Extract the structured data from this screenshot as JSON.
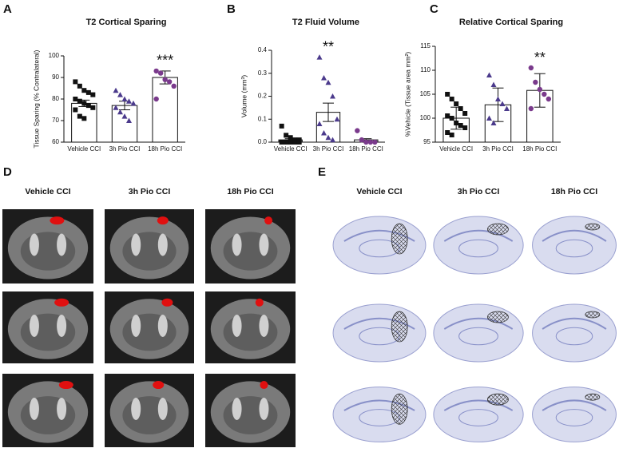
{
  "chart_data": [
    {
      "type": "bar",
      "panel": "A",
      "title": "T2 Cortical Sparing",
      "ylabel": "Tissue Sparing (% Contralateral)",
      "categories": [
        "Vehicle CCI",
        "3h Pio CCI",
        "18h Pio CCI"
      ],
      "values": [
        78,
        77,
        90
      ],
      "errors": [
        1.5,
        2,
        3
      ],
      "points": [
        [
          88,
          86,
          84,
          83,
          82,
          80,
          79,
          78,
          77,
          76,
          75,
          72,
          71
        ],
        [
          84,
          82,
          80,
          79,
          78,
          76,
          74,
          72,
          70
        ],
        [
          93,
          92,
          89,
          88,
          86,
          80
        ]
      ],
      "significance": [
        null,
        null,
        "***"
      ],
      "colors": [
        "#111111",
        "#4b3a8c",
        "#7a3a8c"
      ],
      "markers": [
        "square",
        "triangle",
        "circle"
      ],
      "ylim": [
        60,
        100
      ],
      "yticks": [
        60,
        70,
        80,
        90,
        100
      ]
    },
    {
      "type": "bar",
      "panel": "B",
      "title": "T2 Fluid Volume",
      "ylabel": "Volume (mm³)",
      "categories": [
        "Vehicle CCI",
        "3h Pio CCI",
        "18h Pio CCI"
      ],
      "values": [
        0.01,
        0.13,
        0.01
      ],
      "errors": [
        0.005,
        0.04,
        0.005
      ],
      "points": [
        [
          0.07,
          0.03,
          0.02,
          0.01,
          0.01,
          0,
          0,
          0,
          0,
          0,
          0,
          0
        ],
        [
          0.37,
          0.28,
          0.26,
          0.2,
          0.1,
          0.08,
          0.04,
          0.02,
          0.01
        ],
        [
          0.05,
          0.01,
          0,
          0,
          0
        ]
      ],
      "significance": [
        null,
        "**",
        null
      ],
      "colors": [
        "#111111",
        "#4b3a8c",
        "#7a3a8c"
      ],
      "markers": [
        "square",
        "triangle",
        "circle"
      ],
      "ylim": [
        0,
        0.4
      ],
      "yticks": [
        {
          "value": 0,
          "label": "0.0"
        },
        0.1,
        0.2,
        0.3,
        0.4
      ]
    },
    {
      "type": "bar",
      "panel": "C",
      "title": "Relative Cortical Sparing",
      "ylabel": "%Vehicle (Tissue area mm²)",
      "categories": [
        "Vehicle CCI",
        "3h Pio CCI",
        "18h Pio CCI"
      ],
      "values": [
        100,
        102.8,
        105.8
      ],
      "errors": [
        2.3,
        3.5,
        3.5
      ],
      "points": [
        [
          105,
          104,
          103,
          102,
          101,
          100.5,
          100,
          99,
          98.5,
          98,
          97,
          96.5
        ],
        [
          109,
          107,
          104,
          103,
          102,
          100,
          99
        ],
        [
          110.5,
          107.5,
          106,
          105,
          104,
          102
        ]
      ],
      "significance": [
        null,
        null,
        "**"
      ],
      "colors": [
        "#111111",
        "#4b3a8c",
        "#7a3a8c"
      ],
      "markers": [
        "square",
        "triangle",
        "circle"
      ],
      "ylim": [
        95,
        115
      ],
      "yticks": [
        95,
        100,
        105,
        110,
        115
      ]
    }
  ],
  "panels": [
    {
      "label": "D",
      "columns": [
        "Vehicle CCI",
        "3h Pio CCI",
        "18h Pio CCI"
      ]
    },
    {
      "label": "E",
      "columns": [
        "Vehicle CCI",
        "3h Pio CCI",
        "18h Pio CCI"
      ]
    }
  ]
}
